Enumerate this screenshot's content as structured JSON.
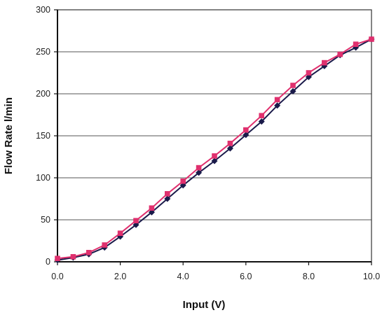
{
  "chart_data": {
    "type": "line",
    "title": "",
    "xlabel": "Input (V)",
    "ylabel": "Flow Rate l/min",
    "xlim": [
      0,
      10
    ],
    "ylim": [
      0,
      300
    ],
    "x_ticks": [
      "0.0",
      "2.0",
      "4.0",
      "6.0",
      "8.0",
      "10.0"
    ],
    "x_tick_values": [
      0,
      2,
      4,
      6,
      8,
      10
    ],
    "y_ticks": [
      "0",
      "50",
      "100",
      "150",
      "200",
      "250",
      "300"
    ],
    "y_tick_values": [
      0,
      50,
      100,
      150,
      200,
      250,
      300
    ],
    "grid": "horizontal",
    "legend": "none",
    "series": [
      {
        "color": "#1a1a4a",
        "marker": "diamond",
        "x": [
          0,
          0.5,
          1.0,
          1.5,
          2.0,
          2.5,
          3.0,
          3.5,
          4.0,
          4.5,
          5.0,
          5.5,
          6.0,
          6.5,
          7.0,
          7.5,
          8.0,
          8.5,
          9.0,
          9.5,
          10.0
        ],
        "y": [
          2,
          5,
          9,
          17,
          30,
          44,
          59,
          75,
          91,
          106,
          120,
          135,
          151,
          167,
          186,
          203,
          220,
          233,
          246,
          255,
          265
        ]
      },
      {
        "color": "#e0306e",
        "marker": "square",
        "x": [
          0,
          0.5,
          1.0,
          1.5,
          2.0,
          2.5,
          3.0,
          3.5,
          4.0,
          4.5,
          5.0,
          5.5,
          6.0,
          6.5,
          7.0,
          7.5,
          8.0,
          8.5,
          9.0,
          9.5,
          10.0
        ],
        "y": [
          4,
          6,
          11,
          20,
          34,
          49,
          64,
          81,
          96,
          112,
          126,
          141,
          157,
          174,
          193,
          210,
          225,
          237,
          247,
          259,
          265
        ]
      }
    ]
  }
}
